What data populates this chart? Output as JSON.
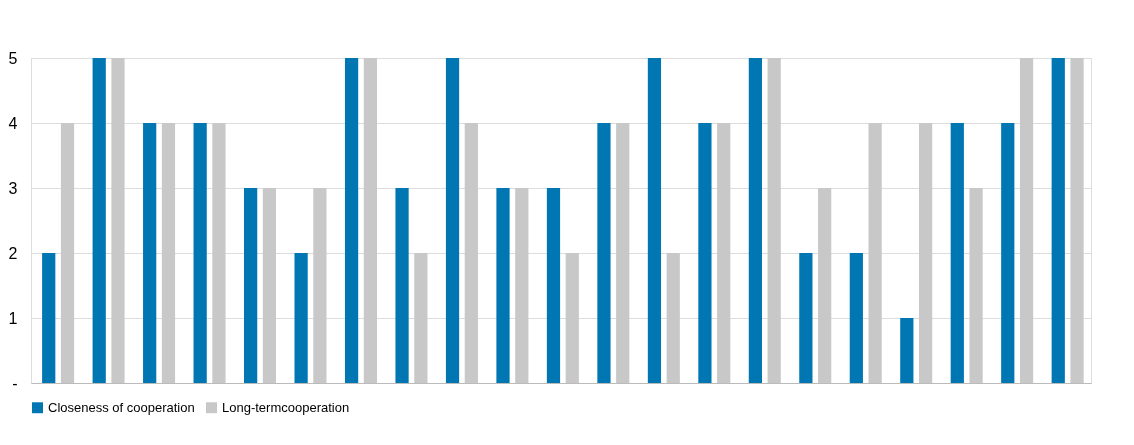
{
  "chart_data": {
    "type": "bar",
    "categories": [
      null,
      null,
      null,
      null,
      null,
      null,
      null,
      null,
      null,
      null,
      null,
      null,
      null,
      null,
      null,
      null,
      null,
      null,
      null,
      null,
      null
    ],
    "series": [
      {
        "name": "Closeness of cooperation",
        "color": "#0077b3",
        "values": [
          2,
          5,
          4,
          4,
          3,
          2,
          5,
          3,
          5,
          3,
          3,
          4,
          5,
          4,
          5,
          2,
          2,
          1,
          4,
          4,
          5
        ]
      },
      {
        "name": "Long-termcooperation",
        "color": "#c8c8c8",
        "values": [
          4,
          5,
          4,
          4,
          3,
          3,
          5,
          2,
          4,
          3,
          2,
          4,
          2,
          4,
          5,
          3,
          4,
          4,
          3,
          5,
          5
        ]
      }
    ],
    "ylim": [
      0,
      5
    ],
    "yticks": [
      {
        "value": 0,
        "label": "-"
      },
      1,
      2,
      3,
      4,
      5
    ],
    "grid": "y",
    "legend": "bottom",
    "tick_labels": "y"
  }
}
